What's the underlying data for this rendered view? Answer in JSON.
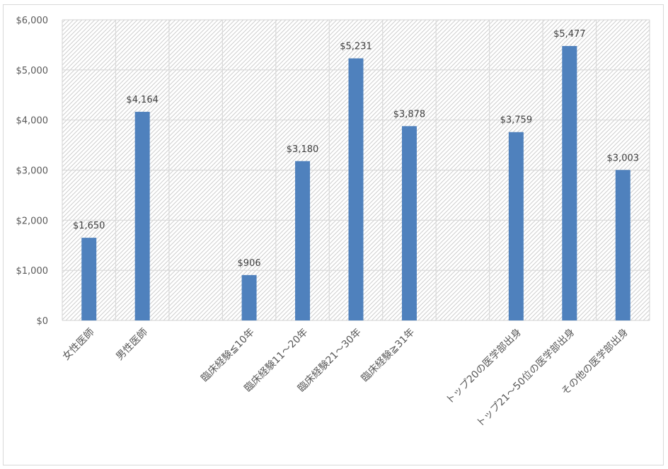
{
  "chart_data": {
    "type": "bar",
    "title": "",
    "xlabel": "",
    "ylabel": "",
    "ylim": [
      0,
      6000
    ],
    "y_ticks": [
      "$0",
      "$1,000",
      "$2,000",
      "$3,000",
      "$4,000",
      "$5,000",
      "$6,000"
    ],
    "y_tick_values": [
      0,
      1000,
      2000,
      3000,
      4000,
      5000,
      6000
    ],
    "grid": true,
    "legend": "none",
    "bar_color": "#4f81bd",
    "categories": [
      "女性医師",
      "男性医師",
      "",
      "臨床経験≦10年",
      "臨床経験11～20年",
      "臨床経験21～30年",
      "臨床経験≧31年",
      "",
      "トップ20の医学部出身",
      "トップ21～50位の医学部出身",
      "その他の医学部出身"
    ],
    "values": [
      1650,
      4164,
      null,
      906,
      3180,
      5231,
      3878,
      null,
      3759,
      5477,
      3003
    ],
    "data_labels": [
      "$1,650",
      "$4,164",
      "",
      "$906",
      "$3,180",
      "$5,231",
      "$3,878",
      "",
      "$3,759",
      "$5,477",
      "$3,003"
    ]
  }
}
